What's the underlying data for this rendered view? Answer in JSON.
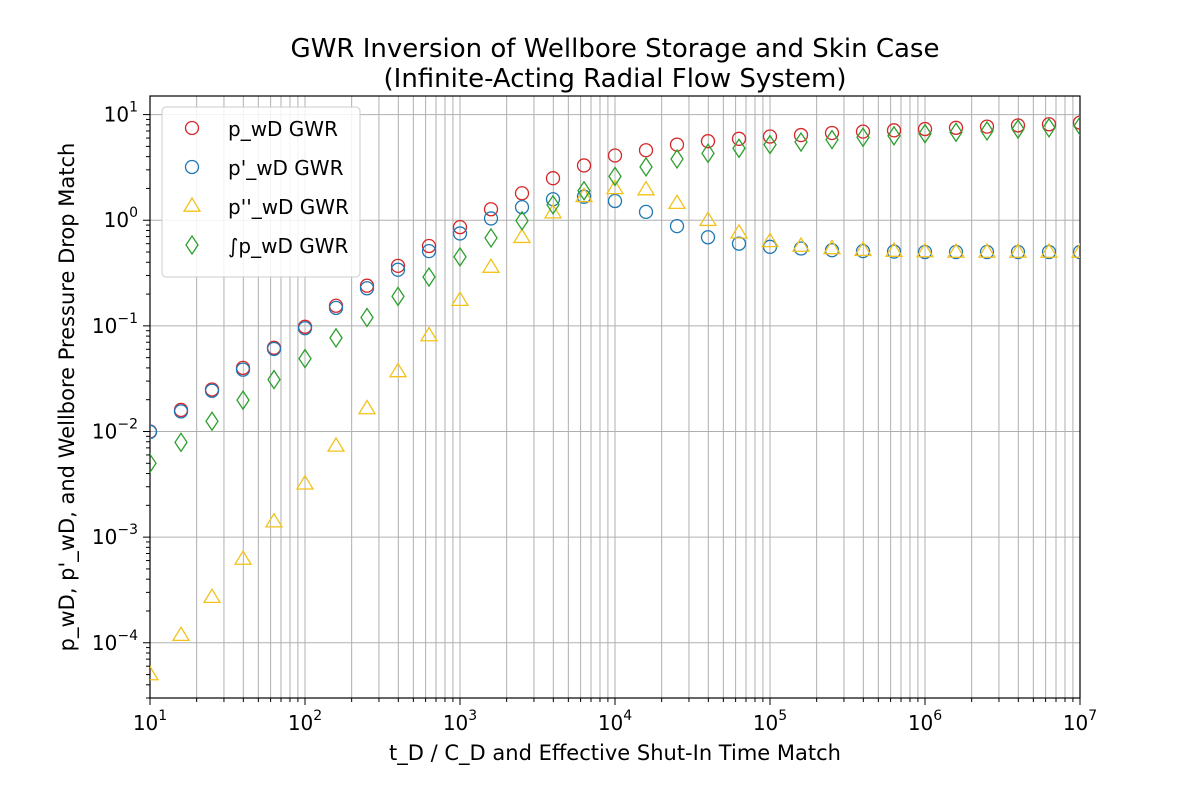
{
  "chart_data": {
    "type": "scatter",
    "title": "GWR Inversion of Wellbore Storage and Skin Case",
    "subtitle": "(Infinite-Acting Radial Flow System)",
    "xlabel": "t_D / C_D and Effective Shut-In Time Match",
    "ylabel": "p_wD, p'_wD, and Wellbore Pressure Drop Match",
    "xscale": "log",
    "yscale": "log",
    "xlim": [
      10,
      10000000
    ],
    "ylim": [
      3e-05,
      15
    ],
    "x_ticks": [
      10,
      100,
      1000,
      10000,
      100000,
      1000000,
      10000000
    ],
    "x_tick_labels": [
      {
        "base": "10",
        "exp": "1"
      },
      {
        "base": "10",
        "exp": "2"
      },
      {
        "base": "10",
        "exp": "3"
      },
      {
        "base": "10",
        "exp": "4"
      },
      {
        "base": "10",
        "exp": "5"
      },
      {
        "base": "10",
        "exp": "6"
      },
      {
        "base": "10",
        "exp": "7"
      }
    ],
    "y_ticks": [
      0.0001,
      0.001,
      0.01,
      0.1,
      1,
      10
    ],
    "y_tick_labels": [
      {
        "base": "10",
        "exp": "−4"
      },
      {
        "base": "10",
        "exp": "−3"
      },
      {
        "base": "10",
        "exp": "−2"
      },
      {
        "base": "10",
        "exp": "−1"
      },
      {
        "base": "10",
        "exp": "0"
      },
      {
        "base": "10",
        "exp": "1"
      }
    ],
    "grid": "major and minor",
    "legend_position": "upper-left",
    "x": [
      10,
      15.85,
      25.12,
      39.81,
      63.1,
      100,
      158.5,
      251.2,
      398.1,
      631,
      1000,
      1585,
      2512,
      3981,
      6310,
      10000,
      15850,
      25120,
      39810,
      63100,
      100000,
      158500,
      251200,
      398100,
      631000,
      1000000,
      1585000,
      2512000,
      3981000,
      6310000,
      10000000
    ],
    "series": [
      {
        "name": "p_wD GWR",
        "marker": "circle",
        "color": "#d62728",
        "values": [
          0.01,
          0.016,
          0.025,
          0.04,
          0.062,
          0.098,
          0.155,
          0.24,
          0.37,
          0.57,
          0.86,
          1.27,
          1.8,
          2.5,
          3.3,
          4.1,
          4.6,
          5.2,
          5.6,
          5.9,
          6.2,
          6.4,
          6.7,
          6.9,
          7.1,
          7.3,
          7.5,
          7.7,
          7.9,
          8.1,
          8.4
        ]
      },
      {
        "name": "p'_wD GWR",
        "marker": "circle",
        "color": "#1f77b4",
        "values": [
          0.0099,
          0.0155,
          0.0243,
          0.0385,
          0.0605,
          0.095,
          0.148,
          0.227,
          0.34,
          0.51,
          0.75,
          1.04,
          1.33,
          1.58,
          1.67,
          1.52,
          1.2,
          0.88,
          0.69,
          0.6,
          0.56,
          0.54,
          0.52,
          0.51,
          0.505,
          0.5,
          0.5,
          0.5,
          0.5,
          0.5,
          0.5
        ]
      },
      {
        "name": "p''_wD GWR",
        "marker": "triangle",
        "color": "#f2c21b",
        "values": [
          5e-05,
          0.000118,
          0.00027,
          0.00062,
          0.0014,
          0.0032,
          0.0073,
          0.0165,
          0.037,
          0.081,
          0.175,
          0.36,
          0.69,
          1.18,
          1.68,
          2.0,
          1.95,
          1.45,
          1.0,
          0.76,
          0.63,
          0.57,
          0.54,
          0.52,
          0.51,
          0.505,
          0.5,
          0.5,
          0.5,
          0.5,
          0.5
        ]
      },
      {
        "name": "∫p_wD GWR",
        "marker": "diamond",
        "color": "#2ca02c",
        "values": [
          0.005,
          0.0079,
          0.0125,
          0.0198,
          0.031,
          0.049,
          0.077,
          0.12,
          0.19,
          0.29,
          0.45,
          0.68,
          0.99,
          1.4,
          1.9,
          2.6,
          3.2,
          3.8,
          4.3,
          4.8,
          5.2,
          5.5,
          5.8,
          6.1,
          6.3,
          6.6,
          6.8,
          7.0,
          7.3,
          7.5,
          7.8
        ]
      }
    ]
  }
}
